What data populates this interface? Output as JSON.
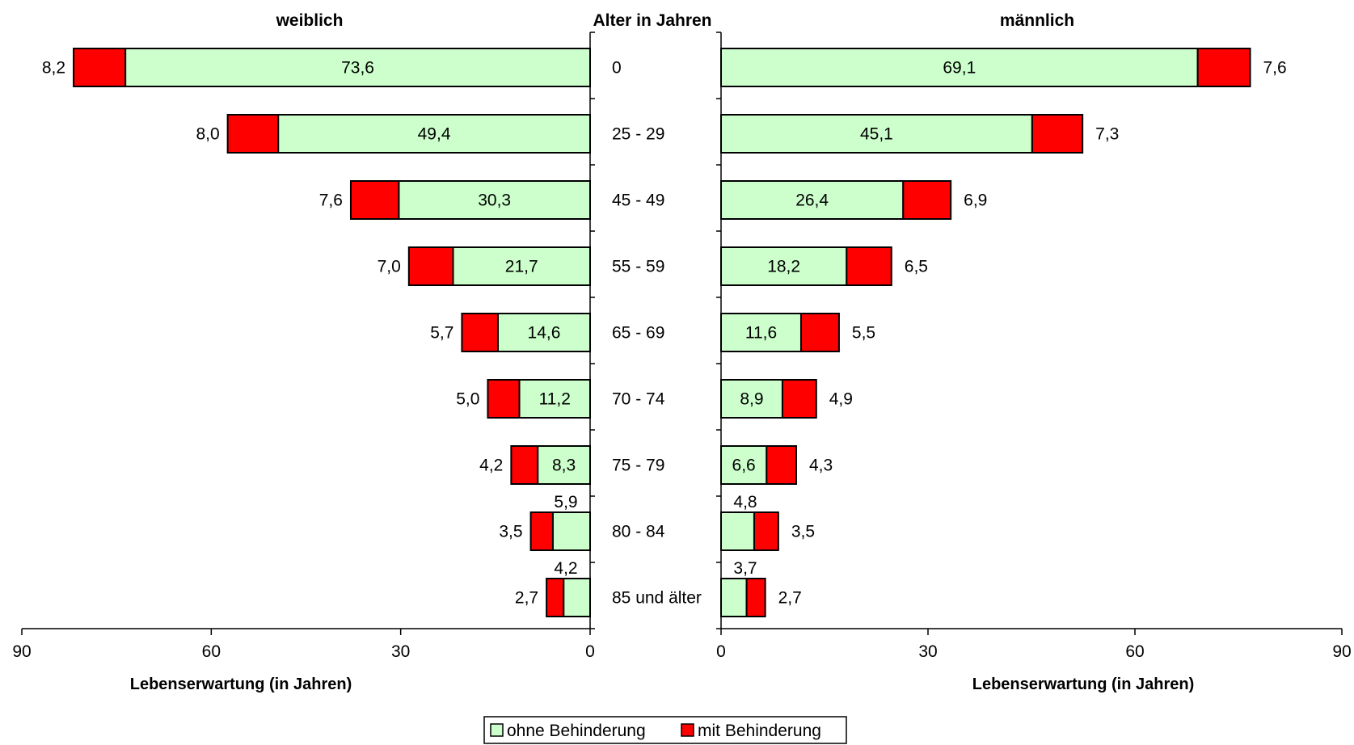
{
  "chart_data": {
    "type": "bar",
    "layout": "population-pyramid",
    "center_title": "Alter in Jahren",
    "categories": [
      "0",
      "25 - 29",
      "45 - 49",
      "55 - 59",
      "65 - 69",
      "70 - 74",
      "75 - 79",
      "80 - 84",
      "85 und älter"
    ],
    "panels": [
      {
        "title": "weiblich",
        "direction": "left",
        "xlabel": "Lebenserwartung (in Jahren)",
        "xlim": [
          0,
          90
        ],
        "ticks": [
          "90",
          "60",
          "30",
          "0"
        ],
        "series": [
          {
            "name": "ohne Behinderung",
            "values": [
              73.6,
              49.4,
              30.3,
              21.7,
              14.6,
              11.2,
              8.3,
              5.9,
              4.2
            ],
            "labels": [
              "73,6",
              "49,4",
              "30,3",
              "21,7",
              "14,6",
              "11,2",
              "8,3",
              "5,9",
              "4,2"
            ]
          },
          {
            "name": "mit Behinderung",
            "values": [
              8.2,
              8.0,
              7.6,
              7.0,
              5.7,
              5.0,
              4.2,
              3.5,
              2.7
            ],
            "labels": [
              "8,2",
              "8,0",
              "7,6",
              "7,0",
              "5,7",
              "5,0",
              "4,2",
              "3,5",
              "2,7"
            ]
          }
        ]
      },
      {
        "title": "männlich",
        "direction": "right",
        "xlabel": "Lebenserwartung (in Jahren)",
        "xlim": [
          0,
          90
        ],
        "ticks": [
          "0",
          "30",
          "60",
          "90"
        ],
        "series": [
          {
            "name": "ohne Behinderung",
            "values": [
              69.1,
              45.1,
              26.4,
              18.2,
              11.6,
              8.9,
              6.6,
              4.8,
              3.7
            ],
            "labels": [
              "69,1",
              "45,1",
              "26,4",
              "18,2",
              "11,6",
              "8,9",
              "6,6",
              "4,8",
              "3,7"
            ]
          },
          {
            "name": "mit Behinderung",
            "values": [
              7.6,
              7.3,
              6.9,
              6.5,
              5.5,
              4.9,
              4.3,
              3.5,
              2.7
            ],
            "labels": [
              "7,6",
              "7,3",
              "6,9",
              "6,5",
              "5,5",
              "4,9",
              "4,3",
              "3,5",
              "2,7"
            ]
          }
        ]
      }
    ],
    "legend": {
      "position": "bottom",
      "items": [
        "ohne Behinderung",
        "mit Behinderung"
      ]
    },
    "colors": {
      "ohne Behinderung": "#ccffcc",
      "mit Behinderung": "#ff0000"
    }
  }
}
